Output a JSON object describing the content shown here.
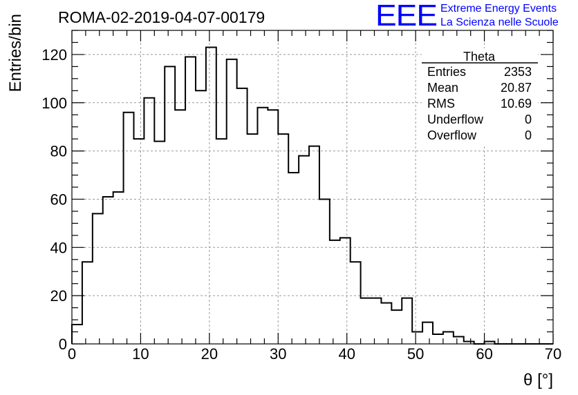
{
  "chart_data": {
    "type": "bar",
    "title": "ROMA-02-2019-04-07-00179",
    "xlabel": "θ [°]",
    "ylabel": "Entries/bin",
    "xlim": [
      0,
      70
    ],
    "ylim": [
      0,
      130
    ],
    "xticks": [
      0,
      10,
      20,
      30,
      40,
      50,
      60,
      70
    ],
    "yticks": [
      0,
      20,
      40,
      60,
      80,
      100,
      120
    ],
    "grid": true,
    "bin_width": 1.5,
    "bins_start": 0,
    "values": [
      8,
      34,
      54,
      61,
      63,
      96,
      85,
      102,
      84,
      115,
      97,
      119,
      105,
      123,
      85,
      118,
      106,
      87,
      98,
      97,
      87,
      71,
      78,
      82,
      60,
      43,
      44,
      34,
      19,
      19,
      17,
      14,
      19,
      5,
      9,
      4,
      5,
      3,
      1,
      0,
      1,
      0,
      0,
      0,
      0,
      0,
      0
    ]
  },
  "stats_box": {
    "title": "Theta",
    "rows": [
      {
        "label": "Entries",
        "value": "2353"
      },
      {
        "label": "Mean",
        "value": "20.87"
      },
      {
        "label": "RMS",
        "value": "10.69"
      },
      {
        "label": "Underflow",
        "value": "0"
      },
      {
        "label": "Overflow",
        "value": "0"
      }
    ]
  },
  "logo": {
    "mark": "EEE",
    "line1": "Extreme Energy Events",
    "line2": "La Scienza nelle Scuole",
    "color": "#0000ff"
  },
  "colors": {
    "line": "#000000",
    "grid": "#999999",
    "background": "#ffffff"
  }
}
